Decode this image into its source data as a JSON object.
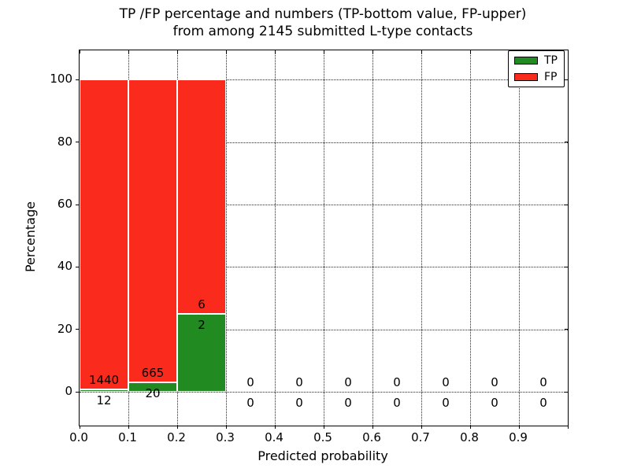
{
  "figure": {
    "title_line1": "TP /FP percentage and numbers (TP-bottom value, FP-upper)",
    "title_line2": "from among 2145 submitted L-type contacts",
    "xlabel": "Predicted probability",
    "ylabel": "Percentage"
  },
  "legend": {
    "position": "upper right",
    "items": [
      {
        "label": "TP",
        "color": "#218a21"
      },
      {
        "label": "FP",
        "color": "#fa2b1c"
      }
    ]
  },
  "colors": {
    "tp": "#218a21",
    "fp": "#fa2b1c",
    "bar_edge": "#ffffff",
    "axis": "#000000",
    "background": "#ffffff"
  },
  "chart_data": {
    "type": "bar",
    "stacked": true,
    "normalized": "each bin stacked to 100%",
    "title": "TP /FP percentage and numbers (TP-bottom value, FP-upper)\nfrom among 2145 submitted L-type contacts",
    "xlabel": "Predicted probability",
    "ylabel": "Percentage",
    "total_submitted_contacts": 2145,
    "xlim": [
      0.0,
      1.0
    ],
    "ylim": [
      -10.8,
      109.4
    ],
    "x_tick_labels": [
      "0.0",
      "0.1",
      "0.2",
      "0.3",
      "0.4",
      "0.5",
      "0.6",
      "0.7",
      "0.8",
      "0.9"
    ],
    "y_tick_values": [
      0,
      20,
      40,
      60,
      80,
      100
    ],
    "grid": true,
    "legend_position": "upper right",
    "series_names": [
      "TP",
      "FP"
    ],
    "bins": [
      {
        "bin_start": 0.0,
        "bin_end": 0.1,
        "tp_count": 12,
        "fp_count": 1440,
        "tp_pct": 0.83,
        "fp_pct": 99.17
      },
      {
        "bin_start": 0.1,
        "bin_end": 0.2,
        "tp_count": 20,
        "fp_count": 665,
        "tp_pct": 2.92,
        "fp_pct": 97.08
      },
      {
        "bin_start": 0.2,
        "bin_end": 0.3,
        "tp_count": 2,
        "fp_count": 6,
        "tp_pct": 25.0,
        "fp_pct": 75.0
      },
      {
        "bin_start": 0.3,
        "bin_end": 0.4,
        "tp_count": 0,
        "fp_count": 0,
        "tp_pct": 0,
        "fp_pct": 0
      },
      {
        "bin_start": 0.4,
        "bin_end": 0.5,
        "tp_count": 0,
        "fp_count": 0,
        "tp_pct": 0,
        "fp_pct": 0
      },
      {
        "bin_start": 0.5,
        "bin_end": 0.6,
        "tp_count": 0,
        "fp_count": 0,
        "tp_pct": 0,
        "fp_pct": 0
      },
      {
        "bin_start": 0.6,
        "bin_end": 0.7,
        "tp_count": 0,
        "fp_count": 0,
        "tp_pct": 0,
        "fp_pct": 0
      },
      {
        "bin_start": 0.7,
        "bin_end": 0.8,
        "tp_count": 0,
        "fp_count": 0,
        "tp_pct": 0,
        "fp_pct": 0
      },
      {
        "bin_start": 0.8,
        "bin_end": 0.9,
        "tp_count": 0,
        "fp_count": 0,
        "tp_pct": 0,
        "fp_pct": 0
      },
      {
        "bin_start": 0.9,
        "bin_end": 1.0,
        "tp_count": 0,
        "fp_count": 0,
        "tp_pct": 0,
        "fp_pct": 0
      }
    ]
  }
}
